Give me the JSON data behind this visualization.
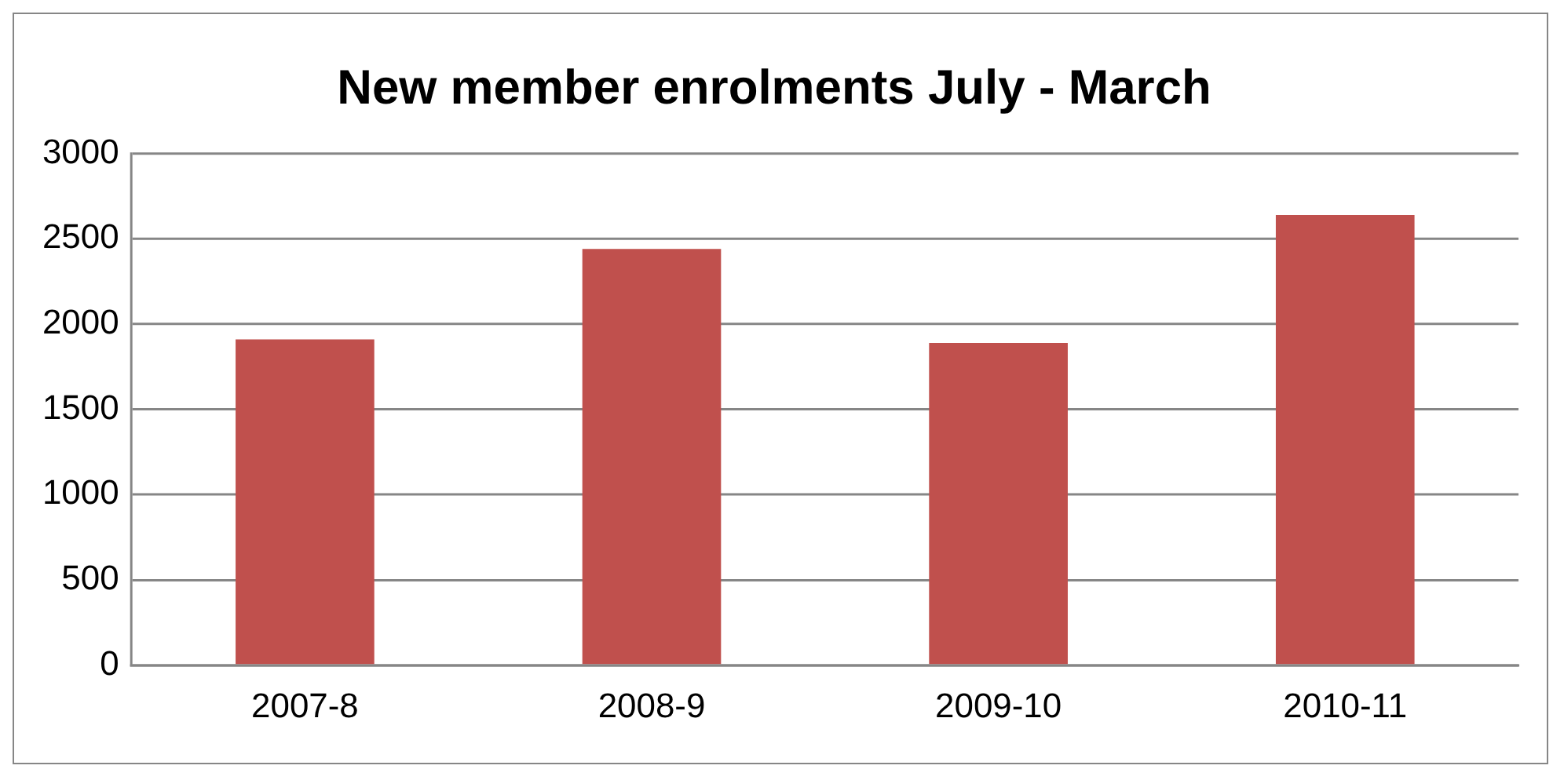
{
  "chart_data": {
    "type": "bar",
    "title": "New member enrolments July - March",
    "categories": [
      "2007-8",
      "2008-9",
      "2009-10",
      "2010-11"
    ],
    "values": [
      1910,
      2440,
      1890,
      2640
    ],
    "color": "#c0504d",
    "ylim": [
      0,
      3000
    ],
    "yticks": [
      0,
      500,
      1000,
      1500,
      2000,
      2500,
      3000
    ],
    "grid": "y",
    "legend": false
  }
}
